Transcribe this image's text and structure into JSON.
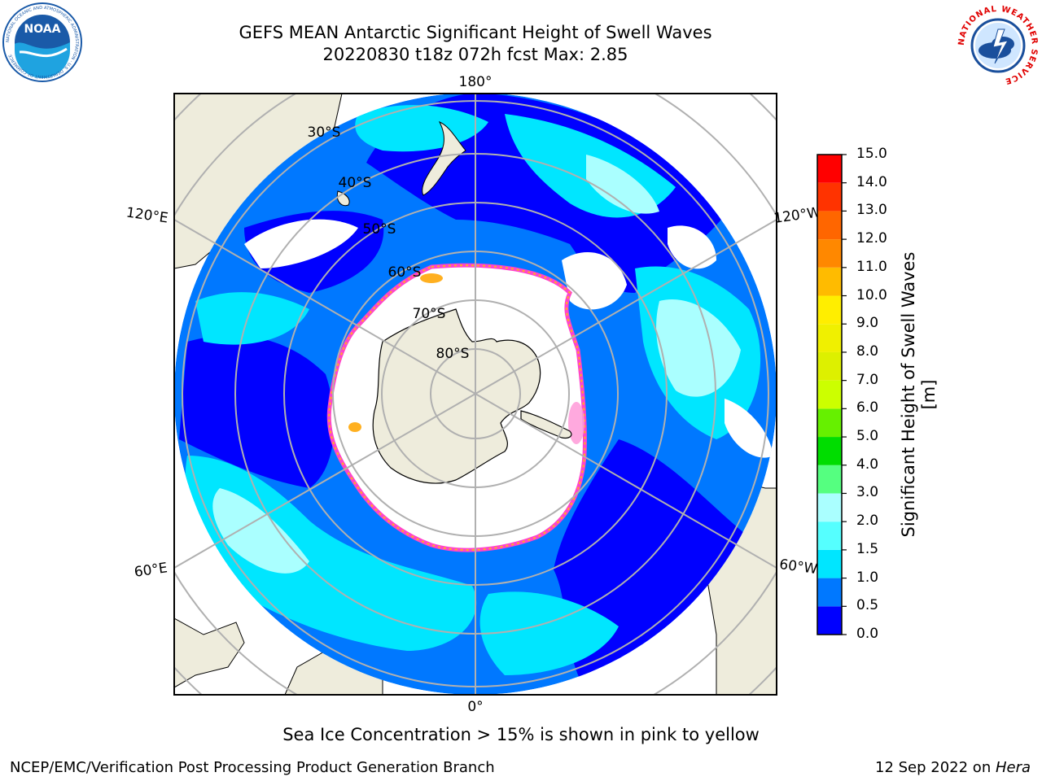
{
  "header": {
    "title_line1": "GEFS MEAN Antarctic Significant Height of Swell Waves",
    "title_line2": "20220830 t18z 072h fcst   Max: 2.85"
  },
  "logos": {
    "left": "noaa-logo",
    "right": "national-weather-service-logo",
    "noaa_text": "NOAA",
    "noaa_ring": "NATIONAL OCEANIC AND ATMOSPHERIC ADMINISTRATION · U.S. DEPARTMENT OF COMMERCE",
    "nws_ring": "NATIONAL WEATHER SERVICE"
  },
  "map": {
    "projection": "south-polar-stereographic",
    "longitude_labels": {
      "top": "180°",
      "bottom": "0°",
      "upper_left": "120°E",
      "lower_left": "60°E",
      "upper_right": "120°W",
      "lower_right": "60°W"
    },
    "latitude_labels": [
      "30°S",
      "40°S",
      "50°S",
      "60°S",
      "70°S",
      "80°S"
    ],
    "colors": {
      "land": "#eeecdc",
      "ice_free_white": "#ffffff",
      "gridline": "#b0b0b0",
      "sea_ice_edge_pink": "#ff44cc",
      "sea_ice_edge_yellow": "#ffb020"
    }
  },
  "colorbar": {
    "title": "Significant Height of Swell Waves [m]",
    "tick_labels": [
      "0.0",
      "0.5",
      "1.0",
      "1.5",
      "2.0",
      "3.0",
      "4.0",
      "5.0",
      "6.0",
      "7.0",
      "8.0",
      "9.0",
      "10.0",
      "11.0",
      "12.0",
      "13.0",
      "14.0",
      "15.0"
    ],
    "bins": [
      {
        "from": 0.0,
        "to": 0.5,
        "color": "#0000ff"
      },
      {
        "from": 0.5,
        "to": 1.0,
        "color": "#0078ff"
      },
      {
        "from": 1.0,
        "to": 1.5,
        "color": "#00e6ff"
      },
      {
        "from": 1.5,
        "to": 2.0,
        "color": "#55ffff"
      },
      {
        "from": 2.0,
        "to": 3.0,
        "color": "#aaffff"
      },
      {
        "from": 3.0,
        "to": 4.0,
        "color": "#55ff80"
      },
      {
        "from": 4.0,
        "to": 5.0,
        "color": "#00dd00"
      },
      {
        "from": 5.0,
        "to": 6.0,
        "color": "#66f000"
      },
      {
        "from": 6.0,
        "to": 7.0,
        "color": "#ccff00"
      },
      {
        "from": 7.0,
        "to": 8.0,
        "color": "#ddf000"
      },
      {
        "from": 8.0,
        "to": 9.0,
        "color": "#f0f000"
      },
      {
        "from": 9.0,
        "to": 10.0,
        "color": "#ffee00"
      },
      {
        "from": 10.0,
        "to": 11.0,
        "color": "#ffbb00"
      },
      {
        "from": 11.0,
        "to": 12.0,
        "color": "#ff8800"
      },
      {
        "from": 12.0,
        "to": 13.0,
        "color": "#ff6600"
      },
      {
        "from": 13.0,
        "to": 14.0,
        "color": "#ff3300"
      },
      {
        "from": 14.0,
        "to": 15.0,
        "color": "#ff0000"
      }
    ]
  },
  "footer": {
    "note": "Sea Ice Concentration > 15% is shown in pink to yellow",
    "credit": "NCEP/EMC/Verification Post Processing Product Generation Branch",
    "date": "12 Sep 2022 on ",
    "host": "Hera"
  }
}
